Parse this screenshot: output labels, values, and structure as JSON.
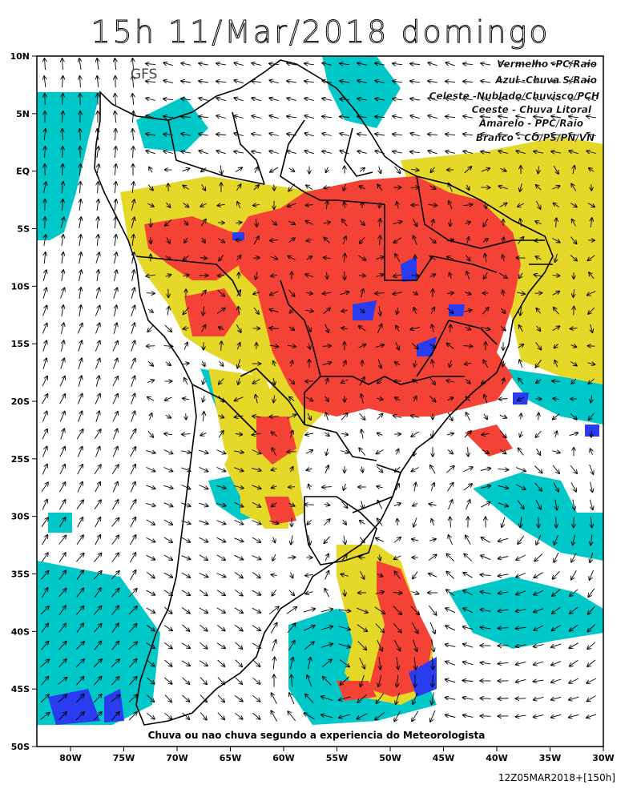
{
  "title": "15h 11/Mar/2018 domingo",
  "model": "GFS",
  "legend": [
    "Vermelho  -PC/Raio",
    "Azul  -Chuva S/Raio",
    "Celeste  -Nublado/Chuvisco/PCH",
    "Ceeste  - Chuva Litoral",
    "Amarelo  -  PPC/Raio",
    "Branco  -  CO/PS/PN/VN"
  ],
  "caption": "Chuva ou nao chuva segundo a experiencia do Meteorologista",
  "run_stamp": "12Z05MAR2018+[150h]",
  "x_ticks": [
    "80W",
    "75W",
    "70W",
    "65W",
    "60W",
    "55W",
    "50W",
    "45W",
    "40W",
    "35W",
    "30W"
  ],
  "y_ticks": [
    "10N",
    "5N",
    "EQ",
    "5S",
    "10S",
    "15S",
    "20S",
    "25S",
    "30S",
    "35S",
    "40S",
    "45S",
    "50S"
  ],
  "colors": {
    "red": "#f44336",
    "blue": "#2a3cf0",
    "cyan": "#00c8c8",
    "yellow": "#e6d828",
    "white": "#ffffff",
    "frame": "#000000"
  }
}
